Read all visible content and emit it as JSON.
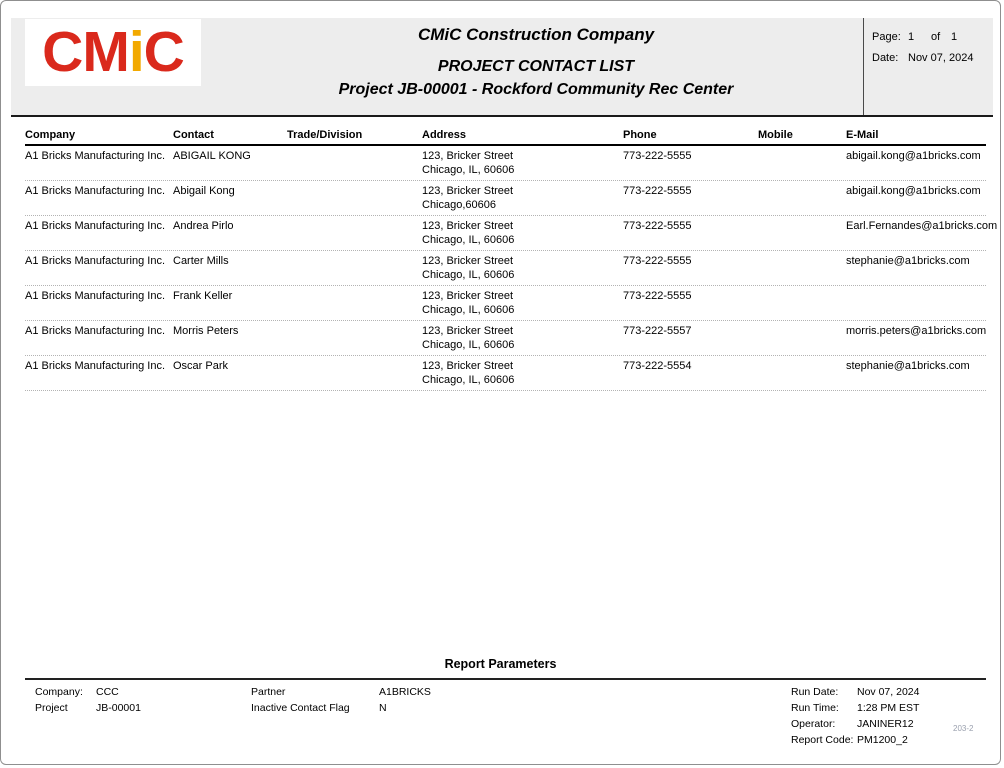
{
  "logo": {
    "part1": "CM",
    "part2": "i",
    "part3": "C"
  },
  "header": {
    "company_title": "CMiC Construction Company",
    "report_title": "PROJECT CONTACT LIST",
    "project_title": "Project JB-00001 - Rockford Community Rec Center",
    "page_label": "Page:",
    "page_number": "1",
    "page_of": "of",
    "page_total": "1",
    "date_label": "Date:",
    "date_value": "Nov 07, 2024"
  },
  "table": {
    "columns": [
      "Company",
      "Contact",
      "Trade/Division",
      "Address",
      "Phone",
      "Mobile",
      "E-Mail"
    ],
    "rows": [
      {
        "company": "A1 Bricks Manufacturing Inc.",
        "contact": "ABIGAIL KONG",
        "trade": "",
        "address1": "123, Bricker Street",
        "address2": "Chicago, IL, 60606",
        "phone": "773-222-5555",
        "mobile": "",
        "email": "abigail.kong@a1bricks.com"
      },
      {
        "company": "A1 Bricks Manufacturing Inc.",
        "contact": "Abigail Kong",
        "trade": "",
        "address1": "123, Bricker Street",
        "address2": "Chicago,60606",
        "phone": "773-222-5555",
        "mobile": "",
        "email": "abigail.kong@a1bricks.com"
      },
      {
        "company": "A1 Bricks Manufacturing Inc.",
        "contact": "Andrea Pirlo",
        "trade": "",
        "address1": "123, Bricker Street",
        "address2": "Chicago, IL, 60606",
        "phone": "773-222-5555",
        "mobile": "",
        "email": "Earl.Fernandes@a1bricks.com"
      },
      {
        "company": "A1 Bricks Manufacturing Inc.",
        "contact": "Carter Mills",
        "trade": "",
        "address1": "123, Bricker Street",
        "address2": "Chicago, IL, 60606",
        "phone": "773-222-5555",
        "mobile": "",
        "email": "stephanie@a1bricks.com"
      },
      {
        "company": "A1 Bricks Manufacturing Inc.",
        "contact": "Frank Keller",
        "trade": "",
        "address1": "123, Bricker Street",
        "address2": "Chicago, IL, 60606",
        "phone": "773-222-5555",
        "mobile": "",
        "email": ""
      },
      {
        "company": "A1 Bricks Manufacturing Inc.",
        "contact": "Morris Peters",
        "trade": "",
        "address1": "123, Bricker Street",
        "address2": "Chicago, IL, 60606",
        "phone": "773-222-5557",
        "mobile": "",
        "email": "morris.peters@a1bricks.com"
      },
      {
        "company": "A1 Bricks Manufacturing Inc.",
        "contact": "Oscar Park",
        "trade": "",
        "address1": "123, Bricker Street",
        "address2": "Chicago, IL, 60606",
        "phone": "773-222-5554",
        "mobile": "",
        "email": "stephanie@a1bricks.com"
      }
    ]
  },
  "footer": {
    "title": "Report Parameters",
    "params_left": [
      {
        "label": "Company:",
        "value": "CCC"
      },
      {
        "label": "Project",
        "value": "JB-00001"
      }
    ],
    "params_mid": [
      {
        "label": "Partner",
        "value": "A1BRICKS"
      },
      {
        "label": "Inactive Contact Flag",
        "value": "N"
      }
    ],
    "params_right": [
      {
        "label": "Run Date:",
        "value": "Nov 07, 2024"
      },
      {
        "label": "Run Time:",
        "value": "1:28 PM EST"
      },
      {
        "label": "Operator:",
        "value": "JANINER12"
      },
      {
        "label": "Report Code:",
        "value": "PM1200_2"
      }
    ],
    "page_code": "203-2"
  },
  "colors": {
    "logo_red": "#da291c",
    "logo_gold": "#f2a900",
    "header_bg": "#ededed"
  }
}
